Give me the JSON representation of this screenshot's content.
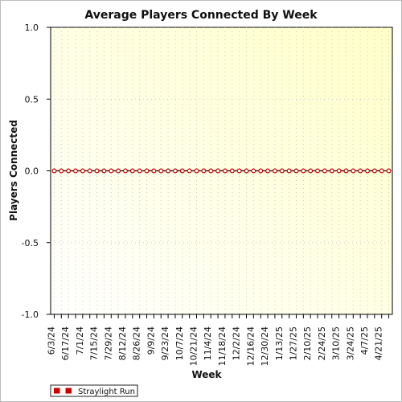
{
  "chart_data": {
    "type": "line",
    "title": "Average Players Connected By Week",
    "xlabel": "Week",
    "ylabel": "Players Connected",
    "ylim": [
      -1.0,
      1.0
    ],
    "y_ticks": [
      "-1.0",
      "-0.5",
      "0.0",
      "0.5",
      "1.0"
    ],
    "x_tick_labels": [
      "6/3/24",
      "6/17/24",
      "7/1/24",
      "7/15/24",
      "7/29/24",
      "8/12/24",
      "8/26/24",
      "9/9/24",
      "9/23/24",
      "10/7/24",
      "10/21/24",
      "11/4/24",
      "11/18/24",
      "12/2/24",
      "12/16/24",
      "12/30/24",
      "1/13/25",
      "1/27/25",
      "2/10/25",
      "2/24/25",
      "3/10/25",
      "3/24/25",
      "4/7/25",
      "4/21/25"
    ],
    "x": [
      "6/3/24",
      "6/10/24",
      "6/17/24",
      "6/24/24",
      "7/1/24",
      "7/8/24",
      "7/15/24",
      "7/22/24",
      "7/29/24",
      "8/5/24",
      "8/12/24",
      "8/19/24",
      "8/26/24",
      "9/2/24",
      "9/9/24",
      "9/16/24",
      "9/23/24",
      "9/30/24",
      "10/7/24",
      "10/14/24",
      "10/21/24",
      "10/28/24",
      "11/4/24",
      "11/11/24",
      "11/18/24",
      "11/25/24",
      "12/2/24",
      "12/9/24",
      "12/16/24",
      "12/23/24",
      "12/30/24",
      "1/6/25",
      "1/13/25",
      "1/20/25",
      "1/27/25",
      "2/3/25",
      "2/10/25",
      "2/17/25",
      "2/24/25",
      "3/3/25",
      "3/10/25",
      "3/17/25",
      "3/24/25",
      "3/31/25",
      "4/7/25",
      "4/14/25",
      "4/21/25",
      "4/28/25"
    ],
    "series": [
      {
        "name": "Straylight Run",
        "color": "#cc0000",
        "values": [
          0,
          0,
          0,
          0,
          0,
          0,
          0,
          0,
          0,
          0,
          0,
          0,
          0,
          0,
          0,
          0,
          0,
          0,
          0,
          0,
          0,
          0,
          0,
          0,
          0,
          0,
          0,
          0,
          0,
          0,
          0,
          0,
          0,
          0,
          0,
          0,
          0,
          0,
          0,
          0,
          0,
          0,
          0,
          0,
          0,
          0,
          0,
          0
        ]
      }
    ],
    "grid": true,
    "legend_position": "bottom-left",
    "background_gradient": [
      "#ffffff",
      "#ffffc8"
    ]
  }
}
